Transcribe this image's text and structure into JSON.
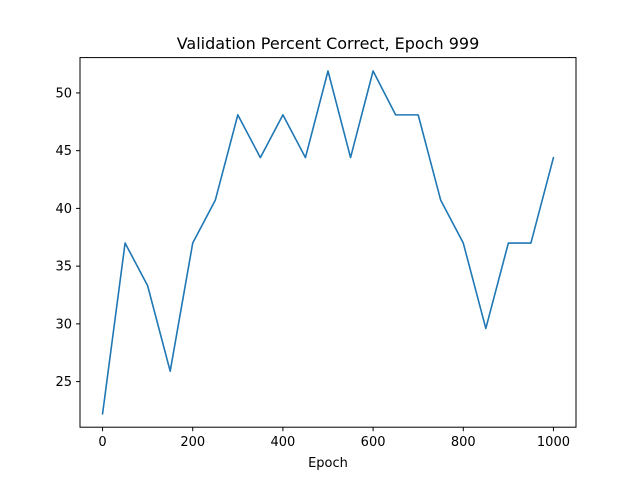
{
  "chart_data": {
    "type": "line",
    "title": "Validation Percent Correct, Epoch 999",
    "xlabel": "Epoch",
    "ylabel": "",
    "xlim": [
      -50,
      1050
    ],
    "ylim": [
      21.05,
      53.06
    ],
    "xticks": [
      0,
      200,
      400,
      600,
      800,
      1000
    ],
    "yticks": [
      25,
      30,
      35,
      40,
      45,
      50
    ],
    "xtick_labels": [
      "0",
      "200",
      "400",
      "600",
      "800",
      "1000"
    ],
    "ytick_labels": [
      "25",
      "30",
      "35",
      "40",
      "45",
      "50"
    ],
    "grid": false,
    "series": [
      {
        "color": "#1f77b4",
        "x": [
          0,
          50,
          100,
          150,
          200,
          250,
          300,
          350,
          400,
          450,
          500,
          550,
          600,
          650,
          700,
          750,
          800,
          850,
          900,
          950,
          1000
        ],
        "y": [
          22.2,
          37.0,
          33.3,
          25.9,
          37.0,
          40.7,
          48.1,
          44.4,
          48.1,
          44.4,
          51.9,
          44.4,
          51.9,
          48.1,
          48.1,
          40.7,
          37.0,
          29.6,
          37.0,
          37.0,
          44.4
        ]
      }
    ]
  }
}
